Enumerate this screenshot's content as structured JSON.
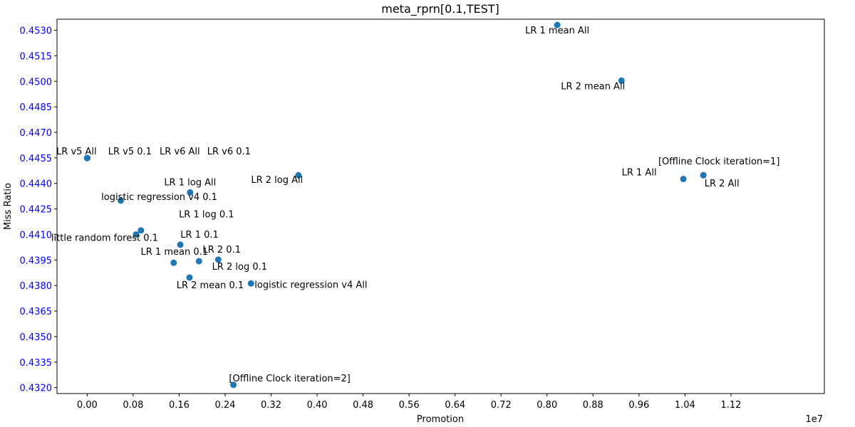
{
  "chart_data": {
    "type": "scatter",
    "title": "meta_rprn[0.1,TEST]",
    "xlabel": "Promotion",
    "ylabel": "Miss Ratio",
    "x_offset_label": "1e7",
    "xlim": [
      -0.0525,
      1.2825
    ],
    "ylim": [
      0.43165,
      0.45365
    ],
    "x_ticks": [
      0.0,
      0.08,
      0.16,
      0.24,
      0.32,
      0.4,
      0.48,
      0.56,
      0.64,
      0.72,
      0.8,
      0.88,
      0.96,
      1.04,
      1.12
    ],
    "x_tick_labels": [
      "0.00",
      "0.08",
      "0.16",
      "0.24",
      "0.32",
      "0.40",
      "0.48",
      "0.56",
      "0.64",
      "0.72",
      "0.80",
      "0.88",
      "0.96",
      "1.04",
      "1.12"
    ],
    "y_ticks": [
      0.432,
      0.4335,
      0.435,
      0.4365,
      0.438,
      0.4395,
      0.441,
      0.4425,
      0.444,
      0.4455,
      0.447,
      0.4485,
      0.45,
      0.4515,
      0.453
    ],
    "y_tick_labels": [
      "0.4320",
      "0.4335",
      "0.4350",
      "0.4365",
      "0.4380",
      "0.4395",
      "0.4410",
      "0.4425",
      "0.4440",
      "0.4455",
      "0.4470",
      "0.4485",
      "0.4500",
      "0.4515",
      "0.4530"
    ],
    "grid": false,
    "colors": {
      "point": "#1f77b4",
      "y_tick_label": "#0000ff",
      "x_tick_label": "#000000"
    },
    "points": [
      {
        "label": "LR 1 mean All",
        "x": 0.8178,
        "y": 0.45331,
        "label_pos": "below"
      },
      {
        "label": "LR 2 mean All",
        "x": 0.9295,
        "y": 0.45004,
        "label_pos": "below"
      },
      {
        "label": "LR v5 All",
        "x": 0.0,
        "y": 0.44549,
        "label_pos": "above-left"
      },
      {
        "label": "LR v5 0.1",
        "x": 0.0,
        "y": 0.44549,
        "label_pos": "above-right"
      },
      {
        "label": "LR v6 All",
        "x": 0.0,
        "y": 0.44549,
        "label_pos": "above-right2"
      },
      {
        "label": "LR v6 0.1",
        "x": 0.0,
        "y": 0.44549,
        "label_pos": "above-right3"
      },
      {
        "label": "LR 2 log All",
        "x": 0.3675,
        "y": 0.44448,
        "label_pos": "below"
      },
      {
        "label": "LR 1 All",
        "x": 1.0372,
        "y": 0.44426,
        "label_pos": "above-left"
      },
      {
        "label": "[Offline Clock iteration=1]",
        "x": 1.072,
        "y": 0.44448,
        "label_pos": "above"
      },
      {
        "label": "LR 2 All",
        "x": 1.072,
        "y": 0.44448,
        "label_pos": "below-right"
      },
      {
        "label": "LR 1 log All",
        "x": 0.179,
        "y": 0.44347,
        "label_pos": "above"
      },
      {
        "label": "logistic regression v4 0.1",
        "x": 0.0585,
        "y": 0.44299,
        "label_pos": "above-right"
      },
      {
        "label": "LR 1 log 0.1",
        "x": 0.0935,
        "y": 0.44124,
        "label_pos": "above-right"
      },
      {
        "label": "little random forest 0.1",
        "x": 0.085,
        "y": 0.441,
        "label_pos": "below-left"
      },
      {
        "label": "LR 1 0.1",
        "x": 0.162,
        "y": 0.4404,
        "label_pos": "above-right"
      },
      {
        "label": "LR 1 mean 0.1",
        "x": 0.1505,
        "y": 0.43934,
        "label_pos": "above-right"
      },
      {
        "label": "LR 2 0.1",
        "x": 0.1945,
        "y": 0.43943,
        "label_pos": "none"
      },
      {
        "label": "LR 2 log 0.1",
        "x": 0.228,
        "y": 0.43952,
        "label_pos": "above-right+below-right"
      },
      {
        "label": "LR 2 mean 0.1",
        "x": 0.178,
        "y": 0.43847,
        "label_pos": "below"
      },
      {
        "label": "logistic regression v4 All",
        "x": 0.285,
        "y": 0.43812,
        "label_pos": "right"
      },
      {
        "label": "[Offline Clock iteration=2]",
        "x": 0.2545,
        "y": 0.43216,
        "label_pos": "above"
      }
    ]
  }
}
